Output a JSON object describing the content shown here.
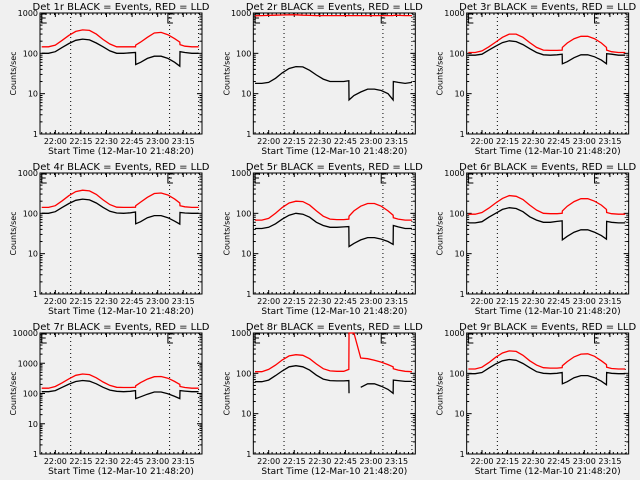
{
  "colors": {
    "background": "#f0f0f0",
    "events": "#000000",
    "lld": "#ff0000",
    "frame": "#000000"
  },
  "chart_data": {
    "type": "line",
    "layout": "3x3 grid",
    "shared": {
      "xlabel": "Start Time (12-Mar-10 21:48:20)",
      "ylabel": "Counts/sec",
      "xtick_labels": [
        "22:00",
        "22:15",
        "22:30",
        "22:45",
        "23:00",
        "23:15"
      ],
      "xtick_minutes": [
        0,
        15,
        30,
        45,
        60,
        75
      ],
      "xlim_minutes_from_2200": [
        -9,
        86
      ],
      "yscale": "log",
      "vlines_minutes_from_2200": [
        9,
        67,
        84
      ],
      "marker_E_minutes_from_2200": [
        -8,
        66
      ],
      "x_minutes": [
        -8,
        -4,
        0,
        4,
        8,
        12,
        16,
        20,
        24,
        28,
        32,
        36,
        40,
        44,
        47,
        47.1,
        50,
        54,
        58,
        62,
        66,
        70,
        73,
        73.1,
        76,
        80,
        84
      ]
    },
    "panels": [
      {
        "title": "Det 1r BLACK = Events, RED = LLD",
        "ylim": [
          1,
          1000
        ],
        "ytick_labels": [
          "1",
          "10",
          "100",
          "1000"
        ],
        "series": [
          {
            "name": "Events",
            "color": "#000000",
            "values": [
              100,
              100,
              110,
              140,
              175,
              210,
              225,
              215,
              180,
              145,
              115,
              100,
              100,
              103,
              105,
              53,
              60,
              75,
              85,
              85,
              75,
              60,
              48,
              110,
              105,
              100,
              100
            ]
          },
          {
            "name": "LLD",
            "color": "#ff0000",
            "values": [
              145,
              145,
              160,
              210,
              280,
              350,
              380,
              370,
              300,
              220,
              170,
              145,
              145,
              145,
              145,
              160,
              190,
              250,
              320,
              330,
              290,
              230,
              190,
              165,
              150,
              145,
              145
            ]
          }
        ]
      },
      {
        "title": "Det 2r BLACK = Events, RED = LLD",
        "ylim": [
          1,
          1000
        ],
        "ytick_labels": [
          "1",
          "10",
          "100",
          "1000"
        ],
        "series": [
          {
            "name": "Events",
            "color": "#000000",
            "values": [
              18,
              18,
              19,
              24,
              33,
              42,
              47,
              46,
              38,
              29,
              23,
              20,
              20,
              20,
              21,
              7,
              9,
              11,
              13,
              13,
              12,
              10,
              7,
              20,
              19,
              18,
              19
            ]
          },
          {
            "name": "LLD",
            "color": "#ff0000",
            "values": [
              850,
              860,
              870,
              880,
              890,
              900,
              900,
              880,
              870,
              860,
              860,
              860,
              860,
              860,
              860,
              860,
              860,
              860,
              860,
              860,
              860,
              860,
              860,
              870,
              870,
              860,
              860
            ]
          }
        ]
      },
      {
        "title": "Det 3r BLACK = Events, RED = LLD",
        "ylim": [
          1,
          1000
        ],
        "ytick_labels": [
          "1",
          "10",
          "100",
          "1000"
        ],
        "series": [
          {
            "name": "Events",
            "color": "#000000",
            "values": [
              90,
              90,
              95,
              120,
              150,
              185,
              205,
              195,
              165,
              130,
              105,
              92,
              90,
              92,
              95,
              55,
              62,
              78,
              92,
              92,
              82,
              68,
              55,
              98,
              95,
              90,
              90
            ]
          },
          {
            "name": "LLD",
            "color": "#ff0000",
            "values": [
              105,
              105,
              115,
              145,
              190,
              250,
              300,
              300,
              250,
              185,
              140,
              120,
              118,
              118,
              120,
              140,
              180,
              230,
              265,
              265,
              230,
              180,
              140,
              120,
              110,
              105,
              105
            ]
          }
        ]
      },
      {
        "title": "Det 4r BLACK = Events, RED = LLD",
        "ylim": [
          1,
          1000
        ],
        "ytick_labels": [
          "1",
          "10",
          "100",
          "1000"
        ],
        "series": [
          {
            "name": "Events",
            "color": "#000000",
            "values": [
              100,
              100,
              110,
              140,
              175,
              210,
              225,
              215,
              180,
              140,
              112,
              102,
              100,
              103,
              108,
              55,
              62,
              78,
              88,
              88,
              78,
              64,
              54,
              105,
              102,
              100,
              100
            ]
          },
          {
            "name": "LLD",
            "color": "#ff0000",
            "values": [
              140,
              140,
              155,
              205,
              275,
              345,
              375,
              360,
              295,
              215,
              165,
              142,
              140,
              140,
              142,
              155,
              190,
              250,
              310,
              320,
              285,
              225,
              180,
              155,
              145,
              140,
              140
            ]
          }
        ]
      },
      {
        "title": "Det 5r BLACK = Events, RED = LLD",
        "ylim": [
          1,
          1000
        ],
        "ytick_labels": [
          "1",
          "10",
          "100",
          "1000"
        ],
        "series": [
          {
            "name": "Events",
            "color": "#000000",
            "values": [
              42,
              42,
              45,
              55,
              72,
              90,
              100,
              95,
              80,
              60,
              50,
              45,
              45,
              46,
              47,
              15,
              18,
              22,
              25,
              25,
              23,
              20,
              17,
              50,
              46,
              42,
              42
            ]
          },
          {
            "name": "LLD",
            "color": "#ff0000",
            "values": [
              68,
              68,
              75,
              100,
              140,
              180,
              200,
              195,
              160,
              115,
              85,
              72,
              70,
              70,
              72,
              85,
              115,
              150,
              175,
              175,
              150,
              115,
              90,
              78,
              72,
              68,
              68
            ]
          }
        ]
      },
      {
        "title": "Det 6r BLACK = Events, RED = LLD",
        "ylim": [
          1,
          1000
        ],
        "ytick_labels": [
          "1",
          "10",
          "100",
          "1000"
        ],
        "series": [
          {
            "name": "Events",
            "color": "#000000",
            "values": [
              58,
              58,
              62,
              80,
              100,
              125,
              138,
              132,
              110,
              82,
              68,
              60,
              60,
              63,
              65,
              22,
              27,
              34,
              39,
              39,
              34,
              28,
              23,
              63,
              60,
              58,
              58
            ]
          },
          {
            "name": "LLD",
            "color": "#ff0000",
            "values": [
              95,
              95,
              105,
              135,
              180,
              235,
              275,
              265,
              220,
              160,
              120,
              100,
              98,
              98,
              100,
              115,
              150,
              195,
              230,
              230,
              200,
              160,
              125,
              105,
              98,
              95,
              95
            ]
          }
        ]
      },
      {
        "title": "Det 7r BLACK = Events, RED = LLD",
        "ylim": [
          1,
          10000
        ],
        "ytick_labels": [
          "1",
          "10",
          "100",
          "1000",
          "10000"
        ],
        "series": [
          {
            "name": "Events",
            "color": "#000000",
            "values": [
              115,
              115,
              125,
              160,
              205,
              250,
              270,
              255,
              210,
              160,
              130,
              118,
              115,
              118,
              125,
              68,
              78,
              95,
              112,
              112,
              98,
              80,
              68,
              125,
              120,
              115,
              115
            ]
          },
          {
            "name": "LLD",
            "color": "#ff0000",
            "values": [
              150,
              150,
              170,
              225,
              305,
              400,
              440,
              420,
              330,
              240,
              185,
              160,
              158,
              158,
              160,
              180,
              230,
              300,
              360,
              365,
              320,
              250,
              200,
              170,
              158,
              150,
              150
            ]
          }
        ]
      },
      {
        "title": "Det 8r BLACK = Events, RED = LLD",
        "ylim": [
          1,
          1000
        ],
        "ytick_labels": [
          "1",
          "10",
          "100",
          "1000"
        ],
        "series": [
          {
            "name": "Events",
            "color": "#000000",
            "values": [
              62,
              62,
              68,
              88,
              115,
              145,
              155,
              145,
              120,
              90,
              72,
              66,
              65,
              65,
              66,
              32,
              null,
              45,
              55,
              55,
              48,
              40,
              32,
              68,
              66,
              63,
              63
            ]
          },
          {
            "name": "LLD",
            "color": "#ff0000",
            "values": [
              110,
              110,
              125,
              160,
              215,
              270,
              290,
              280,
              230,
              170,
              130,
              115,
              112,
              112,
              125,
              1000,
              1000,
              240,
              230,
              210,
              190,
              165,
              145,
              130,
              120,
              112,
              110
            ]
          }
        ]
      },
      {
        "title": "Det 9r BLACK = Events, RED = LLD",
        "ylim": [
          1,
          1000
        ],
        "ytick_labels": [
          "1",
          "10",
          "100",
          "1000"
        ],
        "series": [
          {
            "name": "Events",
            "color": "#000000",
            "values": [
              98,
              98,
              105,
              135,
              170,
              205,
              220,
              210,
              175,
              138,
              110,
              100,
              98,
              100,
              105,
              55,
              62,
              78,
              88,
              88,
              78,
              64,
              52,
              105,
              100,
              98,
              98
            ]
          },
          {
            "name": "LLD",
            "color": "#ff0000",
            "values": [
              128,
              128,
              142,
              185,
              250,
              320,
              360,
              350,
              280,
              205,
              160,
              138,
              135,
              135,
              138,
              155,
              195,
              255,
              300,
              305,
              265,
              205,
              165,
              142,
              132,
              128,
              128
            ]
          }
        ]
      }
    ]
  }
}
